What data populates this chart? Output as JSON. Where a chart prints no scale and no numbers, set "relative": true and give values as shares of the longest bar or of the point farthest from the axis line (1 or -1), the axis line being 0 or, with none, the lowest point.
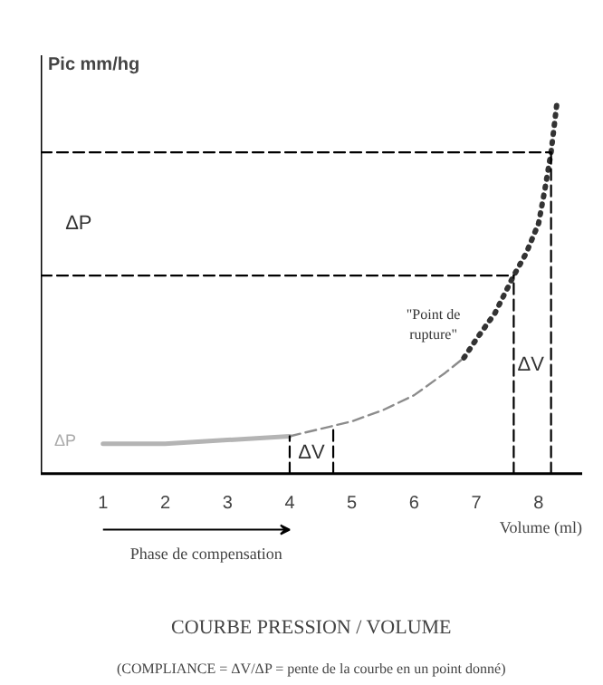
{
  "chart_data": {
    "type": "line",
    "title": "COURBE PRESSION / VOLUME",
    "subtitle": "(COMPLIANCE = ΔV/ΔP = pente de la courbe en un point donné)",
    "xlabel": "Volume (ml)",
    "ylabel": "Pic mm/hg",
    "relative": true,
    "xlim": [
      0,
      8.7
    ],
    "xticks": [
      1,
      2,
      3,
      4,
      5,
      6,
      7,
      8
    ],
    "grid": false,
    "series": [
      {
        "color": "#b4b4b4",
        "line_style": "solid",
        "x": [
          1,
          2,
          3,
          4
        ],
        "values": [
          0.08,
          0.08,
          0.09,
          0.1
        ]
      },
      {
        "color": "#8c8c8c",
        "line_style": "dashed",
        "x": [
          4,
          4.5,
          5,
          5.5,
          6,
          6.5,
          6.8
        ],
        "values": [
          0.1,
          0.12,
          0.14,
          0.17,
          0.21,
          0.27,
          0.31
        ]
      },
      {
        "color": "#333333",
        "line_style": "dotted",
        "x": [
          6.8,
          7,
          7.3,
          7.6,
          7.8,
          8,
          8.1,
          8.2,
          8.3
        ],
        "values": [
          0.31,
          0.36,
          0.43,
          0.53,
          0.59,
          0.67,
          0.76,
          0.86,
          1.0
        ]
      },
      {
        "color": "#000000",
        "line_style": "dashed",
        "x": [
          0,
          8.2
        ],
        "values": [
          0.86,
          0.86
        ]
      },
      {
        "color": "#000000",
        "line_style": "dashed",
        "x": [
          0,
          7.6
        ],
        "values": [
          0.53,
          0.53
        ]
      },
      {
        "color": "#000000",
        "line_style": "dashed",
        "x": [
          8.2,
          8.2
        ],
        "values": [
          0,
          0.86
        ]
      },
      {
        "color": "#000000",
        "line_style": "dashed",
        "x": [
          7.6,
          7.6
        ],
        "values": [
          0,
          0.53
        ]
      },
      {
        "color": "#000000",
        "line_style": "dashed",
        "x": [
          4,
          4
        ],
        "values": [
          0,
          0.1
        ]
      },
      {
        "color": "#000000",
        "line_style": "dashed",
        "x": [
          4.7,
          4.7
        ],
        "values": [
          0,
          0.13
        ]
      }
    ],
    "annotations": [
      "ΔP",
      "ΔP",
      "ΔV",
      "ΔV",
      "\"Point de\nrupture\"",
      "Phase de compensation"
    ]
  }
}
